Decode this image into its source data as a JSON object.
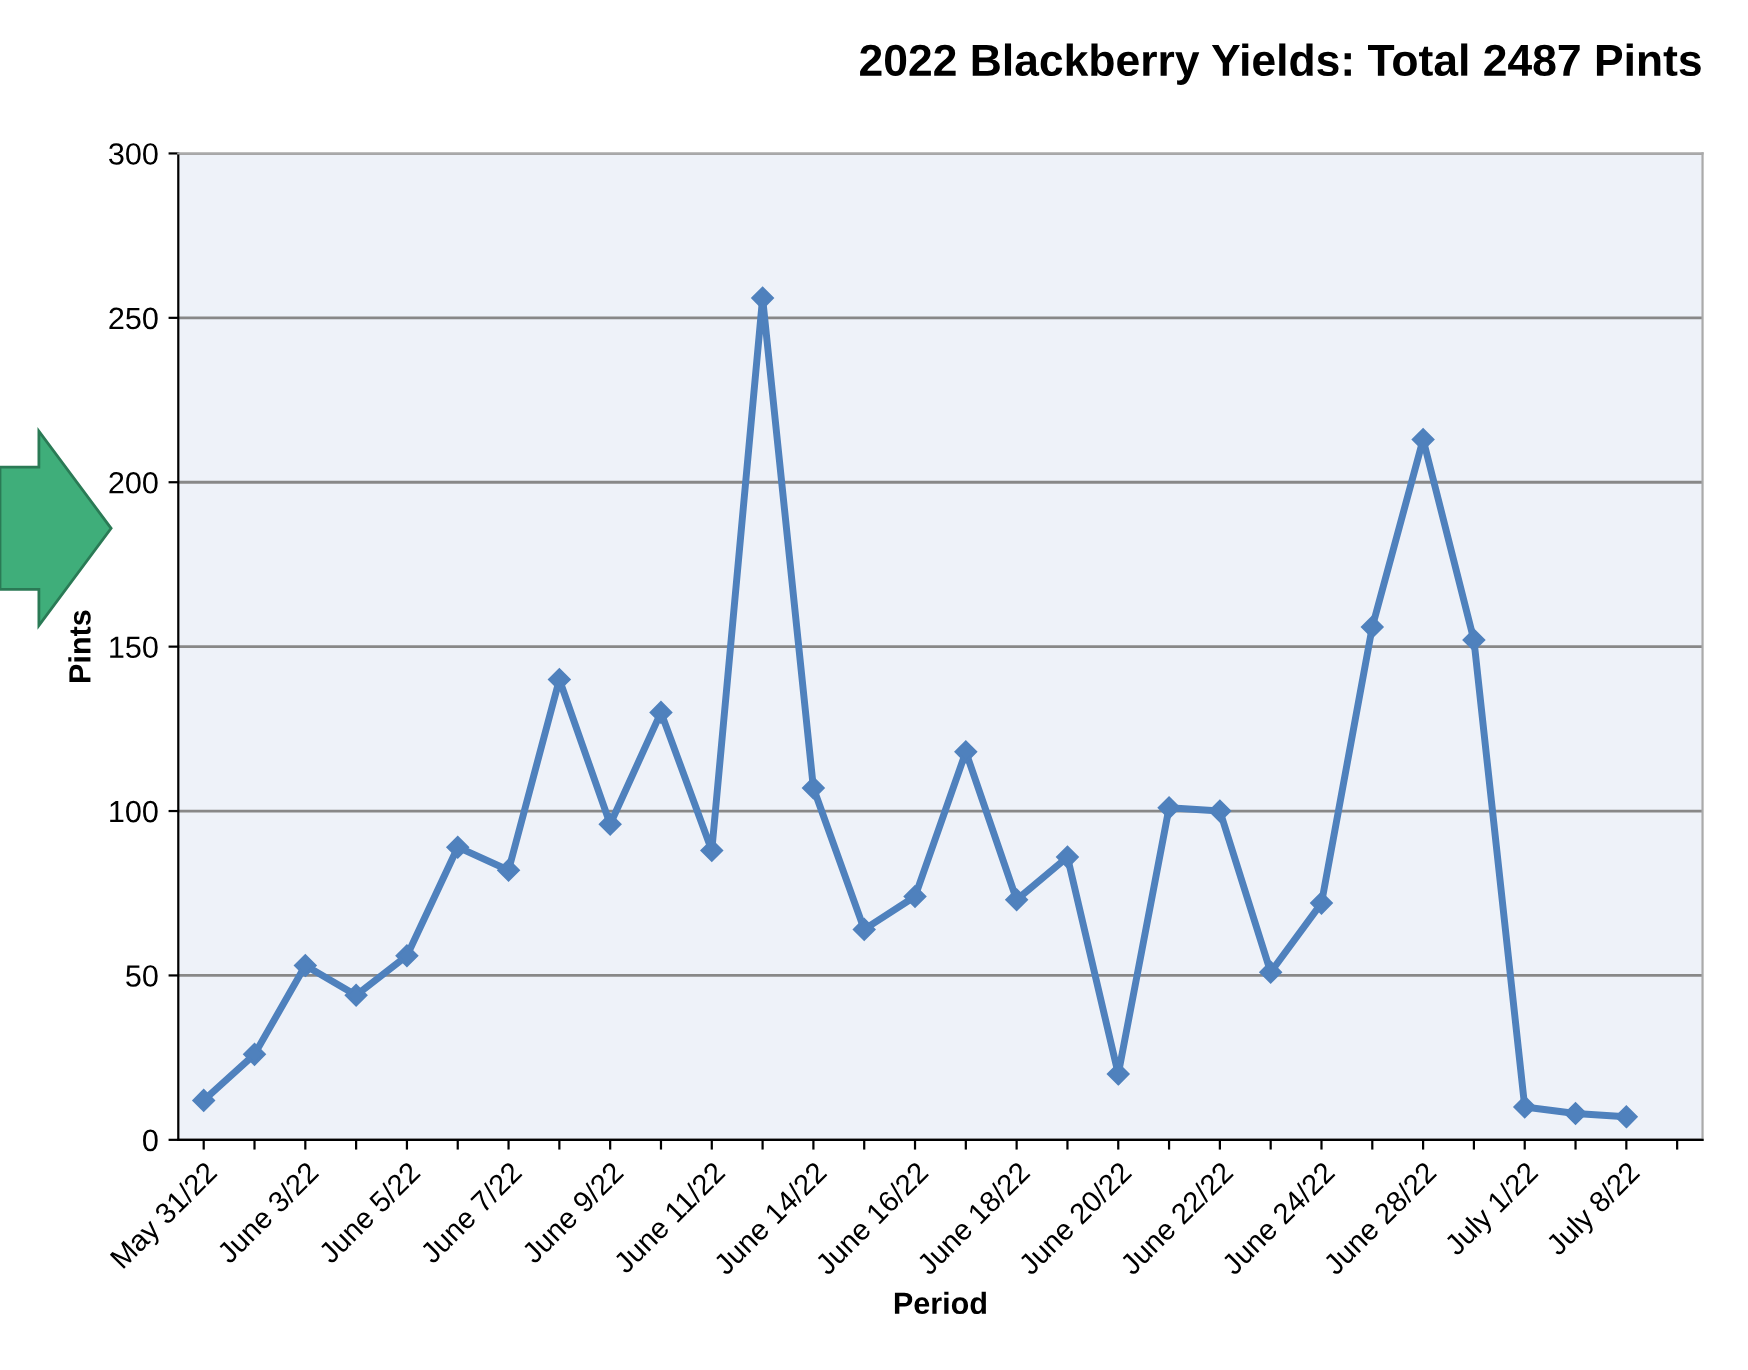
{
  "chart_data": {
    "type": "line",
    "title": "2022 Blackberry Yields: Total 2487 Pints",
    "xlabel": "Period",
    "ylabel": "Pints",
    "categories": [
      "May 31/22",
      null,
      "June 3/22",
      null,
      "June 5/22",
      null,
      "June 7/22",
      null,
      "June 9/22",
      null,
      "June 11/22",
      null,
      "June 14/22",
      null,
      "June 16/22",
      null,
      "June 18/22",
      null,
      "June 20/22",
      null,
      "June 22/22",
      null,
      "June 24/22",
      null,
      "June 28/22",
      null,
      "July 1/22",
      null,
      "July 8/22",
      null
    ],
    "series": [
      {
        "color": "#4f81bd",
        "values": [
          12,
          26,
          53,
          44,
          56,
          89,
          82,
          140,
          96,
          130,
          88,
          256,
          107,
          64,
          74,
          118,
          73,
          86,
          20,
          101,
          100,
          51,
          72,
          156,
          213,
          152,
          10,
          8,
          7,
          null
        ]
      }
    ],
    "ylim": [
      0,
      300
    ],
    "yticks": [
      0,
      50,
      100,
      150,
      200,
      250,
      300
    ],
    "grid": "y",
    "marker": "diamond",
    "line_style": "solid"
  }
}
